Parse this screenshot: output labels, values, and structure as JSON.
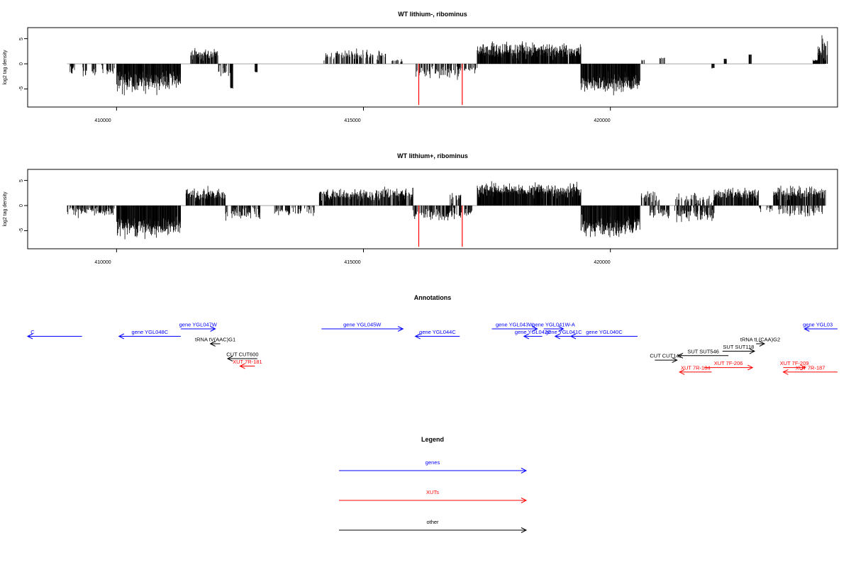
{
  "colors": {
    "gene": "#0000ff",
    "xut": "#ff0000",
    "other": "#000000",
    "bar": "#000000",
    "highlight": "#ff0000",
    "baseline": "#999999"
  },
  "chart_data": [
    {
      "type": "bar",
      "title": "WT lithium-, ribominus",
      "ylabel": "log2 tag density",
      "xlim": [
        408200,
        424600
      ],
      "ylim": [
        -8.6,
        7.2
      ],
      "yticks": [
        "-5",
        "0",
        "5"
      ],
      "xticks": [
        "410000",
        "415000",
        "420000"
      ],
      "density_profile": "lithium_minus",
      "highlight_bars": [
        {
          "x": 416120,
          "y": -8.2
        },
        {
          "x": 417000,
          "y": -8.2
        }
      ]
    },
    {
      "type": "bar",
      "title": "WT lithium+, ribominus",
      "ylabel": "log2 tag density",
      "xlim": [
        408200,
        424600
      ],
      "ylim": [
        -8.6,
        7.2
      ],
      "yticks": [
        "-5",
        "0",
        "5"
      ],
      "xticks": [
        "410000",
        "415000",
        "420000"
      ],
      "density_profile": "lithium_plus",
      "highlight_bars": [
        {
          "x": 416120,
          "y": -8.2
        },
        {
          "x": 417000,
          "y": -8.2
        }
      ]
    }
  ],
  "annotations": {
    "title": "Annotations",
    "features": [
      {
        "label": "C",
        "type": "gene",
        "strand": "-",
        "start": 408200,
        "end": 409300,
        "row": 1,
        "label_x": 408300
      },
      {
        "label": "gene YGL048C",
        "type": "gene",
        "strand": "-",
        "start": 410050,
        "end": 411300,
        "row": 1
      },
      {
        "label": "gene YGL047W",
        "type": "gene",
        "strand": "+",
        "start": 411300,
        "end": 412000,
        "row": 0
      },
      {
        "label": "tRNA tV(AAC)G1",
        "type": "other",
        "strand": "-",
        "start": 411900,
        "end": 412100,
        "row": 2
      },
      {
        "label": "CUT CUT600",
        "type": "other",
        "strand": "-",
        "start": 412250,
        "end": 412850,
        "row": 4
      },
      {
        "label": "XUT 7R-181",
        "type": "xut",
        "strand": "-",
        "start": 412500,
        "end": 412800,
        "row": 5
      },
      {
        "label": "gene YGL045W",
        "type": "gene",
        "strand": "+",
        "start": 414150,
        "end": 415800,
        "row": 0
      },
      {
        "label": "gene YGL044C",
        "type": "gene",
        "strand": "-",
        "start": 416050,
        "end": 416950,
        "row": 1
      },
      {
        "label": "gene YGL043W",
        "type": "gene",
        "strand": "+",
        "start": 417600,
        "end": 418520,
        "row": 0
      },
      {
        "label": "gene YGL042C",
        "type": "gene",
        "strand": "-",
        "start": 418250,
        "end": 418620,
        "row": 1
      },
      {
        "label": "gene YGL041W-A",
        "type": "gene",
        "strand": "+",
        "start": 418650,
        "end": 419050,
        "row": 0
      },
      {
        "label": "gene YGL041C",
        "type": "gene",
        "strand": "-",
        "start": 418880,
        "end": 419230,
        "row": 1
      },
      {
        "label": "gene YGL040C",
        "type": "gene",
        "strand": "-",
        "start": 419200,
        "end": 420550,
        "row": 1
      },
      {
        "label": "tRNA tL(CAA)G2",
        "type": "other",
        "strand": "+",
        "start": 422950,
        "end": 423120,
        "row": 2
      },
      {
        "label": "SUT SUT118",
        "type": "other",
        "strand": "+",
        "start": 422270,
        "end": 422920,
        "row": 3
      },
      {
        "label": "SUT SUT546",
        "type": "other",
        "strand": "-",
        "start": 421370,
        "end": 422390,
        "row": 3.6
      },
      {
        "label": "CUT CUT142",
        "type": "other",
        "strand": "+",
        "start": 420900,
        "end": 421350,
        "row": 4.2
      },
      {
        "label": "XUT 7F-206",
        "type": "xut",
        "strand": "+",
        "start": 421900,
        "end": 422880,
        "row": 5.2
      },
      {
        "label": "XUT 7R-184",
        "type": "xut",
        "strand": "-",
        "start": 421400,
        "end": 422050,
        "row": 5.8
      },
      {
        "label": "XUT 7F-209",
        "type": "xut",
        "strand": "+",
        "start": 423500,
        "end": 423950,
        "row": 5.2
      },
      {
        "label": "XUT 7R-187",
        "type": "xut",
        "strand": "-",
        "start": 423500,
        "end": 424650,
        "row": 5.8
      },
      {
        "label": "gene YGL03",
        "type": "gene",
        "strand": "-",
        "start": 423930,
        "end": 424600,
        "row": 0,
        "label_x": 424200
      }
    ]
  },
  "legend": {
    "title": "Legend",
    "items": [
      {
        "label": "genes",
        "type": "gene"
      },
      {
        "label": "XUTs",
        "type": "xut"
      },
      {
        "label": "other",
        "type": "other"
      }
    ]
  }
}
